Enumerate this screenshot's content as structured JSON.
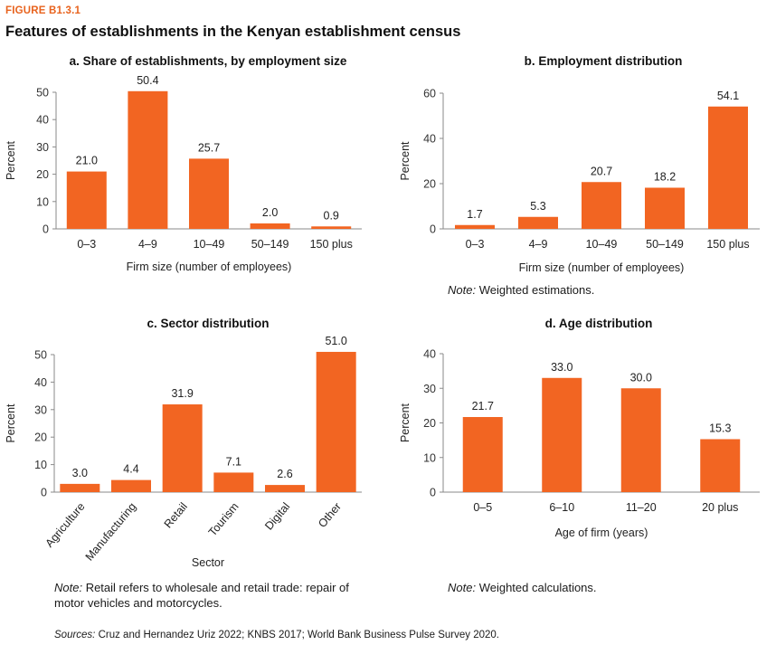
{
  "figure": {
    "label": "FIGURE B1.3.1",
    "title": "Features of establishments in the Kenyan establishment census",
    "sources_label": "Sources:",
    "sources_text": " Cruz and Hernandez Uriz 2022; KNBS 2017; World Bank Business Pulse Survey 2020."
  },
  "colors": {
    "bar": "#f26522",
    "axis": "#8a8a8a"
  },
  "notes": {
    "b": {
      "label": "Note:",
      "text": " Weighted estimations."
    },
    "c": {
      "label": "Note:",
      "text": " Retail refers to wholesale and retail trade: repair of motor vehicles and motorcycles."
    },
    "d": {
      "label": "Note:",
      "text": " Weighted calculations."
    }
  },
  "chart_data": [
    {
      "id": "a",
      "type": "bar",
      "title": "a. Share of establishments, by employment size",
      "xlabel": "Firm size (number of employees)",
      "ylabel": "Percent",
      "categories": [
        "0–3",
        "4–9",
        "10–49",
        "50–149",
        "150 plus"
      ],
      "values": [
        21.0,
        50.4,
        25.7,
        2.0,
        0.9
      ],
      "labels": [
        "21.0",
        "50.4",
        "25.7",
        "2.0",
        "0.9"
      ],
      "ylim": [
        0,
        50
      ],
      "yticks": [
        0,
        10,
        20,
        30,
        40,
        50
      ],
      "grid": false
    },
    {
      "id": "b",
      "type": "bar",
      "title": "b. Employment distribution",
      "xlabel": "Firm size (number of employees)",
      "ylabel": "Percent",
      "categories": [
        "0–3",
        "4–9",
        "10–49",
        "50–149",
        "150 plus"
      ],
      "values": [
        1.7,
        5.3,
        20.7,
        18.2,
        54.1
      ],
      "labels": [
        "1.7",
        "5.3",
        "20.7",
        "18.2",
        "54.1"
      ],
      "ylim": [
        0,
        60
      ],
      "yticks": [
        0,
        20,
        40,
        60
      ],
      "grid": false
    },
    {
      "id": "c",
      "type": "bar",
      "title": "c. Sector distribution",
      "xlabel": "Sector",
      "ylabel": "Percent",
      "categories": [
        "Agriculture",
        "Manufacturing",
        "Retail",
        "Tourism",
        "Digital",
        "Other"
      ],
      "values": [
        3.0,
        4.4,
        31.9,
        7.1,
        2.6,
        51.0
      ],
      "labels": [
        "3.0",
        "4.4",
        "31.9",
        "7.1",
        "2.6",
        "51.0"
      ],
      "ylim": [
        0,
        50
      ],
      "yticks": [
        0,
        10,
        20,
        30,
        40,
        50
      ],
      "grid": false
    },
    {
      "id": "d",
      "type": "bar",
      "title": "d. Age distribution",
      "xlabel": "Age of firm (years)",
      "ylabel": "Percent",
      "categories": [
        "0–5",
        "6–10",
        "11–20",
        "20 plus"
      ],
      "values": [
        21.7,
        33.0,
        30.0,
        15.3
      ],
      "labels": [
        "21.7",
        "33.0",
        "30.0",
        "15.3"
      ],
      "ylim": [
        0,
        40
      ],
      "yticks": [
        0,
        10,
        20,
        30,
        40
      ],
      "grid": false
    }
  ]
}
